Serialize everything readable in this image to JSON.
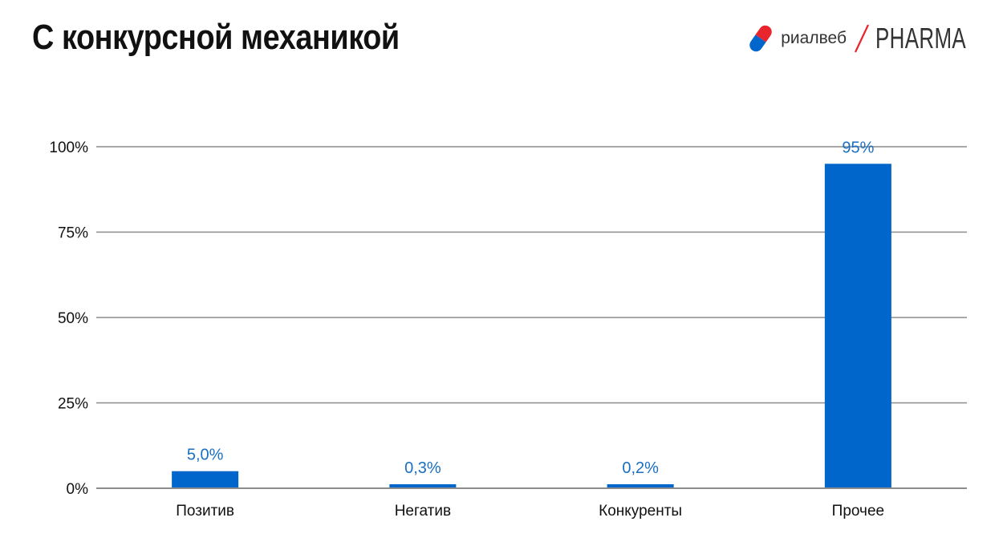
{
  "header": {
    "title": "С конкурсной механикой",
    "brand": {
      "name": "риалвеб",
      "product": "PHARMA"
    }
  },
  "colors": {
    "bar": "#0066CC",
    "label": "#1A6FC2",
    "grid": "#8C8C8C",
    "text": "#111111",
    "pill_red": "#E8242C",
    "pill_blue": "#0066CC"
  },
  "chart_data": {
    "type": "bar",
    "categories": [
      "Позитив",
      "Негатив",
      "Конкуренты",
      "Прочее"
    ],
    "values": [
      5.0,
      0.3,
      0.2,
      95
    ],
    "data_labels": [
      "5,0%",
      "0,3%",
      "0,2%",
      "95%"
    ],
    "y_ticks": [
      {
        "value": 0,
        "label": "0%"
      },
      {
        "value": 25,
        "label": "25%"
      },
      {
        "value": 50,
        "label": "50%"
      },
      {
        "value": 75,
        "label": "75%"
      },
      {
        "value": 100,
        "label": "100%"
      }
    ],
    "ylim": [
      0,
      100
    ],
    "grid": true,
    "legend": "none"
  }
}
